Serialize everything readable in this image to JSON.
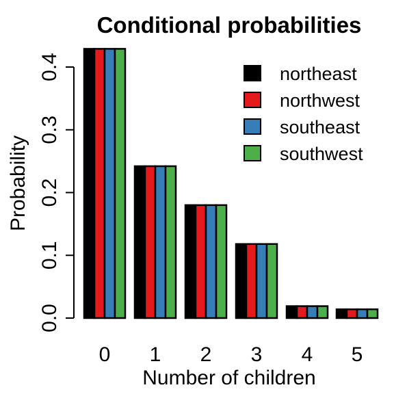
{
  "chart_data": {
    "type": "bar",
    "title": "Conditional probabilities",
    "xlabel": "Number of children",
    "ylabel": "Probability",
    "categories": [
      "0",
      "1",
      "2",
      "3",
      "4",
      "5"
    ],
    "series": [
      {
        "name": "northeast",
        "color": "#000000",
        "values": [
          0.429,
          0.242,
          0.18,
          0.118,
          0.019,
          0.014
        ]
      },
      {
        "name": "northwest",
        "color": "#e41a1c",
        "values": [
          0.429,
          0.242,
          0.18,
          0.118,
          0.019,
          0.014
        ]
      },
      {
        "name": "southeast",
        "color": "#377eb8",
        "values": [
          0.429,
          0.242,
          0.18,
          0.118,
          0.019,
          0.014
        ]
      },
      {
        "name": "southwest",
        "color": "#4daf4a",
        "values": [
          0.429,
          0.242,
          0.18,
          0.118,
          0.019,
          0.014
        ]
      }
    ],
    "yticks": [
      "0.0",
      "0.1",
      "0.2",
      "0.3",
      "0.4"
    ],
    "ylim": [
      0,
      0.44
    ],
    "grid": false,
    "legend_position": "top-right"
  }
}
